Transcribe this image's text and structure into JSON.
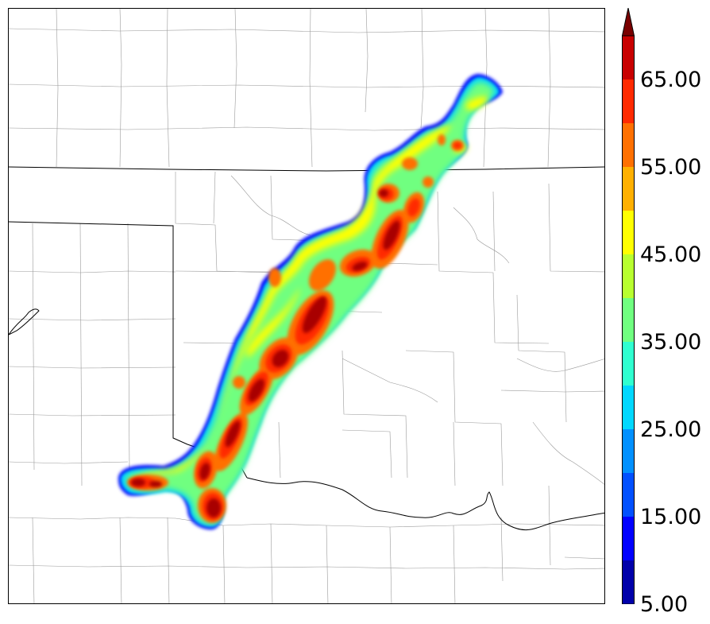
{
  "colorbar": {
    "ticks": [
      "5.00",
      "15.00",
      "25.00",
      "35.00",
      "45.00",
      "55.00",
      "65.00"
    ],
    "tick_values": [
      5,
      15,
      25,
      35,
      45,
      55,
      65
    ],
    "min": 5,
    "max": 70,
    "extend": "max",
    "levels": [
      5,
      10,
      15,
      20,
      25,
      30,
      35,
      40,
      45,
      50,
      55,
      60,
      65,
      70
    ],
    "colors": [
      "#0000aa",
      "#0000ff",
      "#0050ff",
      "#0090ff",
      "#00d8ff",
      "#30ffd0",
      "#70ff80",
      "#b8ff30",
      "#ffff00",
      "#ffb000",
      "#ff7000",
      "#ff2a00",
      "#c80000",
      "#7a0000"
    ]
  },
  "map": {
    "field": "simulated reflectivity",
    "features": [
      "county-borders",
      "state-borders",
      "red-river"
    ]
  }
}
